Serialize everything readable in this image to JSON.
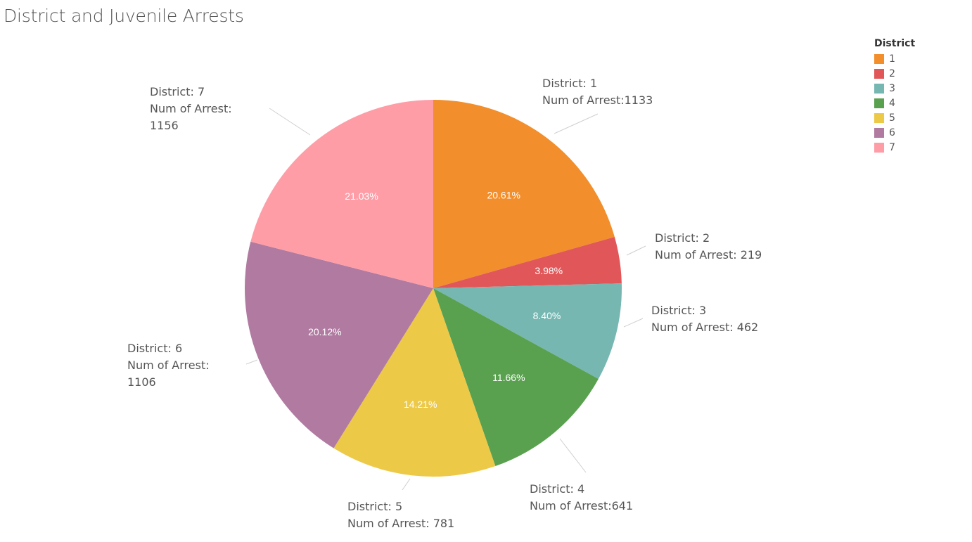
{
  "title": "District and Juvenile Arrests",
  "legend": {
    "title": "District",
    "items": [
      {
        "label": "1",
        "color": "#f28e2b"
      },
      {
        "label": "2",
        "color": "#e15759"
      },
      {
        "label": "3",
        "color": "#76b7b2"
      },
      {
        "label": "4",
        "color": "#59a14f"
      },
      {
        "label": "5",
        "color": "#edc948"
      },
      {
        "label": "6",
        "color": "#b07aa1"
      },
      {
        "label": "7",
        "color": "#ff9da7"
      }
    ]
  },
  "chart_data": {
    "type": "pie",
    "title": "District and Juvenile Arrests",
    "legend_placement": "top-right",
    "slices": [
      {
        "district": "1",
        "value": 1133,
        "percent_label": "20.61%",
        "annotation": [
          "District: 1",
          "Num of Arrest:1133"
        ],
        "color": "#f28e2b"
      },
      {
        "district": "2",
        "value": 219,
        "percent_label": "3.98%",
        "annotation": [
          "District: 2",
          "Num of Arrest: 219"
        ],
        "color": "#e15759"
      },
      {
        "district": "3",
        "value": 462,
        "percent_label": "8.40%",
        "annotation": [
          "District: 3",
          "Num of Arrest: 462"
        ],
        "color": "#76b7b2"
      },
      {
        "district": "4",
        "value": 641,
        "percent_label": "11.66%",
        "annotation": [
          "District: 4",
          "Num of Arrest:641"
        ],
        "color": "#59a14f"
      },
      {
        "district": "5",
        "value": 781,
        "percent_label": "14.21%",
        "annotation": [
          "District: 5",
          "Num of Arrest: 781"
        ],
        "color": "#edc948"
      },
      {
        "district": "6",
        "value": 1106,
        "percent_label": "20.12%",
        "annotation": [
          "District: 6",
          "Num of Arrest:",
          "1106"
        ],
        "color": "#b07aa1"
      },
      {
        "district": "7",
        "value": 1156,
        "percent_label": "21.03%",
        "annotation": [
          "District: 7",
          "Num of Arrest:",
          "1156"
        ],
        "color": "#ff9da7"
      }
    ]
  }
}
